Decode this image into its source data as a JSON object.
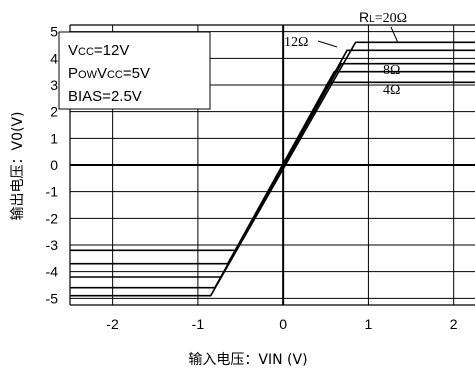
{
  "chart_data": {
    "type": "line",
    "xlabel": "输入电压：VIN (V)",
    "ylabel": "输出电压：V0(V)",
    "xlim": [
      -2.5,
      2.25
    ],
    "ylim": [
      -5.25,
      5.25
    ],
    "x_ticks": [
      "-2",
      "-1",
      "0",
      "1",
      "2"
    ],
    "x_tick_values": [
      -2,
      -1,
      0,
      1,
      2
    ],
    "y_ticks": [
      "5",
      "4",
      "3",
      "2",
      "1",
      "0",
      "-1",
      "-2",
      "-3",
      "-4",
      "-5"
    ],
    "y_tick_values": [
      5,
      4,
      3,
      2,
      1,
      0,
      -1,
      -2,
      -3,
      -4,
      -5
    ],
    "grid": true,
    "conditions": [
      {
        "lines": [
          [
            "V",
            "CC",
            "=12V"
          ]
        ]
      },
      {
        "lines": [
          [
            "P",
            "OW",
            "V",
            "CC",
            "=5V"
          ]
        ]
      },
      {
        "lines": [
          [
            "BIAS=2.5V"
          ]
        ]
      }
    ],
    "condition_lines": [
      "Vcc=12V",
      "PowVcc=5V",
      "BIAS=2.5V"
    ],
    "series": [
      {
        "name": "RL=20Ω",
        "x": [
          -2.5,
          -0.85,
          0.85,
          2.25
        ],
        "y": [
          -4.9,
          -4.9,
          4.6,
          4.6
        ]
      },
      {
        "name": "12Ω",
        "x": [
          -2.5,
          -0.8,
          0.75,
          2.25
        ],
        "y": [
          -4.6,
          -4.6,
          4.3,
          4.3
        ]
      },
      {
        "name": "",
        "x": [
          -2.5,
          -0.73,
          0.68,
          2.25
        ],
        "y": [
          -4.2,
          -4.2,
          3.8,
          3.8
        ]
      },
      {
        "name": "8Ω",
        "x": [
          -2.5,
          -0.65,
          0.6,
          2.25
        ],
        "y": [
          -3.7,
          -3.7,
          3.5,
          3.5
        ]
      },
      {
        "name": "4Ω",
        "x": [
          -2.5,
          -0.55,
          0.53,
          2.25
        ],
        "y": [
          -3.2,
          -3.2,
          3.1,
          3.1
        ]
      }
    ],
    "annotations": {
      "rl_prefix": "R",
      "rl_sub": "L",
      "rl_value": "=20Ω",
      "r12": "12Ω",
      "r8": "8Ω",
      "r4": "4Ω"
    }
  }
}
